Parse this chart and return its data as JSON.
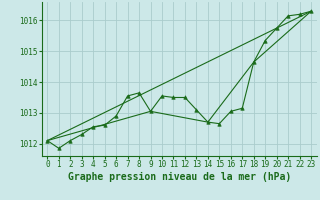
{
  "title": "Graphe pression niveau de la mer (hPa)",
  "background_color": "#cce8e8",
  "grid_color": "#aacccc",
  "line_color": "#1a6b1a",
  "marker_color": "#1a6b1a",
  "xlim": [
    -0.5,
    23.5
  ],
  "ylim": [
    1011.6,
    1016.6
  ],
  "yticks": [
    1012,
    1013,
    1014,
    1015,
    1016
  ],
  "xticks": [
    0,
    1,
    2,
    3,
    4,
    5,
    6,
    7,
    8,
    9,
    10,
    11,
    12,
    13,
    14,
    15,
    16,
    17,
    18,
    19,
    20,
    21,
    22,
    23
  ],
  "series1_x": [
    0,
    1,
    2,
    3,
    4,
    5,
    6,
    7,
    8,
    9,
    10,
    11,
    12,
    13,
    14,
    15,
    16,
    17,
    18,
    19,
    20,
    21,
    22,
    23
  ],
  "series1_y": [
    1012.1,
    1011.85,
    1012.1,
    1012.3,
    1012.55,
    1012.6,
    1012.9,
    1013.55,
    1013.65,
    1013.05,
    1013.55,
    1013.5,
    1013.5,
    1013.1,
    1012.7,
    1012.65,
    1013.05,
    1013.15,
    1014.65,
    1015.35,
    1015.75,
    1016.15,
    1016.2,
    1016.3
  ],
  "series2_x": [
    0,
    23
  ],
  "series2_y": [
    1012.1,
    1016.3
  ],
  "series3_x": [
    0,
    9,
    14,
    18,
    23
  ],
  "series3_y": [
    1012.1,
    1013.05,
    1012.7,
    1014.65,
    1016.3
  ],
  "ylabel_fontsize": 5.5,
  "tick_fontsize": 5.5
}
